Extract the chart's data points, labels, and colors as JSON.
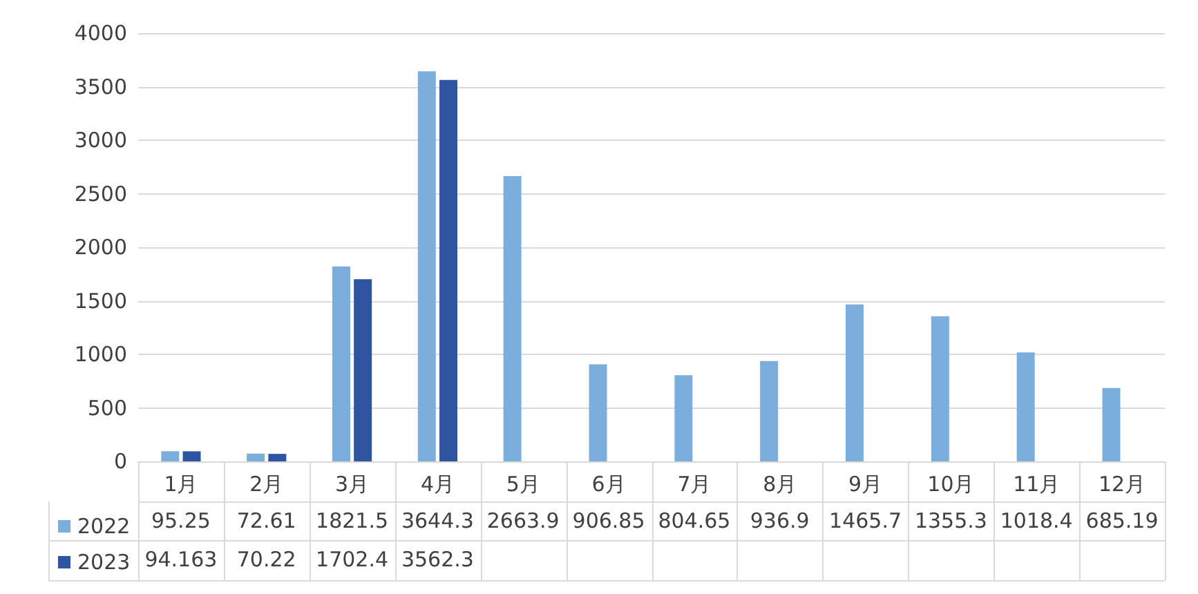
{
  "chart_data": {
    "type": "bar",
    "categories": [
      "1月",
      "2月",
      "3月",
      "4月",
      "5月",
      "6月",
      "7月",
      "8月",
      "9月",
      "10月",
      "11月",
      "12月"
    ],
    "series": [
      {
        "name": "2022",
        "color": "#7caedd",
        "values": [
          95.25,
          72.61,
          1821.5,
          3644.3,
          2663.9,
          906.85,
          804.65,
          936.9,
          1465.7,
          1355.3,
          1018.4,
          685.19
        ]
      },
      {
        "name": "2023",
        "color": "#2f55a0",
        "values": [
          94.163,
          70.22,
          1702.4,
          3562.3,
          null,
          null,
          null,
          null,
          null,
          null,
          null,
          null
        ]
      }
    ],
    "ylim": [
      0,
      4000
    ],
    "yticks": [
      0,
      500,
      1000,
      1500,
      2000,
      2500,
      3000,
      3500,
      4000
    ],
    "grid": "y",
    "legend": "bottom left",
    "data_labels": true
  }
}
